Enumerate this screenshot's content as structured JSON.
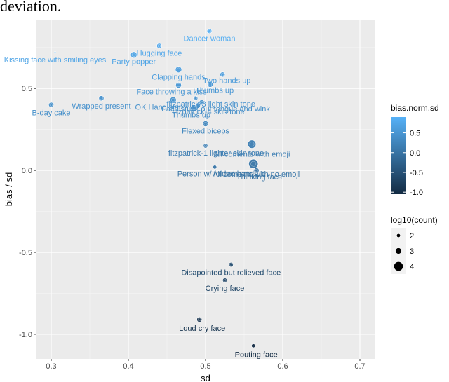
{
  "header_text": "deviation.",
  "chart_data": {
    "type": "scatter",
    "xlabel": "sd",
    "ylabel": "bias / sd",
    "xlim": [
      0.28,
      0.72
    ],
    "ylim": [
      -1.15,
      0.92
    ],
    "x_ticks": [
      "0.3",
      "0.4",
      "0.5",
      "0.6",
      "0.7"
    ],
    "y_ticks": [
      "-1.0",
      "-0.5",
      "0.0",
      "0.5"
    ],
    "grid": true,
    "color_legend": {
      "title": "bias.norm.sd",
      "ticks": [
        "0.5",
        "0.0",
        "-0.5",
        "-1.0"
      ],
      "range": [
        -1.05,
        0.9
      ],
      "low_color": "#132B43",
      "high_color": "#56B1F7",
      "placement": "right"
    },
    "size_legend": {
      "title": "log10(count)",
      "entries": [
        "2",
        "3",
        "4"
      ],
      "placement": "right"
    },
    "points": [
      {
        "label": "Dancer woman",
        "x": 0.505,
        "y": 0.85,
        "size": 2.5
      },
      {
        "label": "Kissing face with smiling eyes",
        "x": 0.305,
        "y": 0.72,
        "size": 1.5
      },
      {
        "label": "Hugging face",
        "x": 0.44,
        "y": 0.76,
        "size": 2.6
      },
      {
        "label": "Party popper",
        "x": 0.407,
        "y": 0.705,
        "size": 3.0
      },
      {
        "label": "Clapping hands",
        "x": 0.465,
        "y": 0.615,
        "size": 3.0
      },
      {
        "label": "Two hands up",
        "x": 0.522,
        "y": 0.585,
        "size": 2.6
      },
      {
        "label": "Face throwing a kiss",
        "x": 0.465,
        "y": 0.52,
        "size": 2.8
      },
      {
        "label": "Thumbs up",
        "x": 0.506,
        "y": 0.525,
        "size": 2.8
      },
      {
        "label": "fitzpatrick-3 light skin tone",
        "x": 0.487,
        "y": 0.44,
        "size": 2.4
      },
      {
        "label": "B-day cake",
        "x": 0.3,
        "y": 0.4,
        "size": 2.6
      },
      {
        "label": "Wrapped present",
        "x": 0.365,
        "y": 0.44,
        "size": 2.6
      },
      {
        "label": "Face stuck out tongue and wink",
        "x": 0.495,
        "y": 0.415,
        "size": 2.6
      },
      {
        "label": "OK Hand sign",
        "x": 0.458,
        "y": 0.43,
        "size": 3.0
      },
      {
        "label": "Thumbs up",
        "x": 0.485,
        "y": 0.38,
        "size": 3.2
      },
      {
        "label": "fitzpatrick-4 skin tone",
        "x": 0.49,
        "y": 0.395,
        "size": 2.6
      },
      {
        "label": "Flexed biceps",
        "x": 0.5,
        "y": 0.285,
        "size": 2.8
      },
      {
        "label": "fitzpatrick-1 lighter skin tone",
        "x": 0.5,
        "y": 0.15,
        "size": 2.4
      },
      {
        "label": "All coments with emoji",
        "x": 0.56,
        "y": 0.16,
        "size": 3.6
      },
      {
        "label": "All coments with no emoji",
        "x": 0.562,
        "y": 0.04,
        "size": 4.0
      },
      {
        "label": "Person w/ folded hands",
        "x": 0.512,
        "y": 0.02,
        "size": 2.2
      },
      {
        "label": "Thinking face",
        "x": 0.566,
        "y": 0.0,
        "size": 2.6
      },
      {
        "label": "Disapointed but relieved face",
        "x": 0.533,
        "y": -0.575,
        "size": 2.4
      },
      {
        "label": "Crying face",
        "x": 0.525,
        "y": -0.67,
        "size": 2.4
      },
      {
        "label": "Loud cry face",
        "x": 0.492,
        "y": -0.91,
        "size": 2.6
      },
      {
        "label": "Pouting face",
        "x": 0.562,
        "y": -1.07,
        "size": 2.2
      }
    ]
  }
}
